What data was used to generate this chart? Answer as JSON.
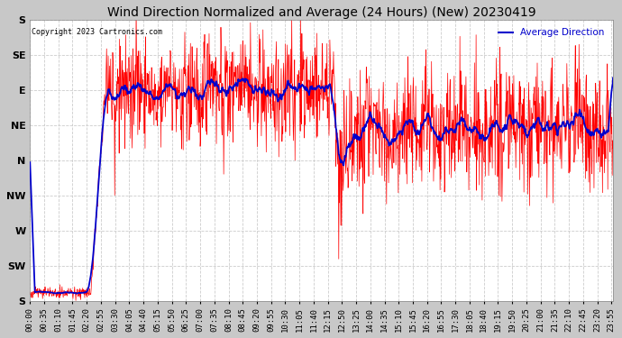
{
  "title": "Wind Direction Normalized and Average (24 Hours) (New) 20230419",
  "copyright_text": "Copyright 2023 Cartronics.com",
  "legend_label_avg": "Average Direction",
  "ytick_labels": [
    "S",
    "SE",
    "E",
    "NE",
    "N",
    "NW",
    "W",
    "SW",
    "S"
  ],
  "ytick_values": [
    0,
    45,
    90,
    135,
    180,
    225,
    270,
    315,
    360
  ],
  "ylim_top": 0,
  "ylim_bottom": 360,
  "figure_bg_color": "#c8c8c8",
  "plot_bg_color": "#ffffff",
  "grid_color": "#cccccc",
  "title_color": "#000000",
  "copyright_color": "#000000",
  "avg_line_color": "#0000cc",
  "raw_line_color": "#ff0000",
  "title_fontsize": 10,
  "ytick_fontsize": 8,
  "xtick_fontsize": 6.5,
  "num_points": 1440,
  "x_tick_step_min": 35
}
